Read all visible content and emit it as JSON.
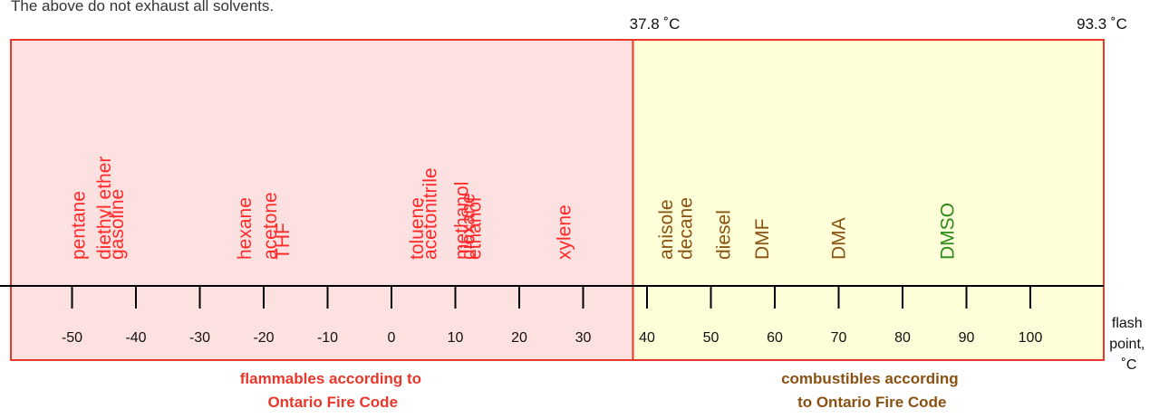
{
  "top_note": "The above do not exhaust all solvents.",
  "boundaries": {
    "flammable_limit": "37.8 ˚C",
    "combustible_limit": "93.3 ˚C",
    "flammable_value": 37.8,
    "combustible_value": 93.3
  },
  "axis": {
    "label_lines": [
      "flash",
      "point,",
      "˚C"
    ],
    "ticks": [
      -50,
      -40,
      -30,
      -20,
      -10,
      0,
      10,
      20,
      30,
      40,
      50,
      60,
      70,
      80,
      90,
      100
    ],
    "range": [
      -57,
      111
    ]
  },
  "regions": {
    "flammable": {
      "label_lines": [
        "flammables according to",
        "Ontario Fire Code"
      ],
      "fill": "#fde0e0",
      "border": "#e8372b",
      "text_color": "#e8372b"
    },
    "combustible": {
      "label_lines": [
        "combustibles according",
        "to Ontario Fire Code"
      ],
      "fill": "#fefed8",
      "border": "#e8372b",
      "text_color": "#8a5212"
    }
  },
  "solvents": [
    {
      "name": "pentane",
      "flash_point": -49,
      "color": "#ff2a2a"
    },
    {
      "name": "diethyl ether",
      "flash_point": -45,
      "color": "#ff2a2a"
    },
    {
      "name": "gasoline",
      "flash_point": -43,
      "color": "#ff2a2a"
    },
    {
      "name": "hexane",
      "flash_point": -23,
      "color": "#ff2a2a"
    },
    {
      "name": "acetone",
      "flash_point": -19,
      "color": "#ff2a2a"
    },
    {
      "name": "THF",
      "flash_point": -17,
      "color": "#ff2a2a"
    },
    {
      "name": "toluene",
      "flash_point": 4,
      "color": "#ff2a2a"
    },
    {
      "name": "acetonitrile",
      "flash_point": 6,
      "color": "#ff2a2a"
    },
    {
      "name": "methanol",
      "flash_point": 11,
      "color": "#ff2a2a"
    },
    {
      "name": "ethanol",
      "flash_point": 13,
      "color": "#ff2a2a"
    },
    {
      "name": "dioxane",
      "flash_point": 12,
      "color": "#ff2a2a"
    },
    {
      "name": "xylene",
      "flash_point": 27,
      "color": "#ff2a2a"
    },
    {
      "name": "anisole",
      "flash_point": 43,
      "color": "#8a5212"
    },
    {
      "name": "decane",
      "flash_point": 46,
      "color": "#8a5212"
    },
    {
      "name": "diesel",
      "flash_point": 52,
      "color": "#8a5212"
    },
    {
      "name": "DMF",
      "flash_point": 58,
      "color": "#8a5212"
    },
    {
      "name": "DMA",
      "flash_point": 70,
      "color": "#8a5212"
    },
    {
      "name": "DMSO",
      "flash_point": 87,
      "color": "#2a8a1a"
    }
  ]
}
